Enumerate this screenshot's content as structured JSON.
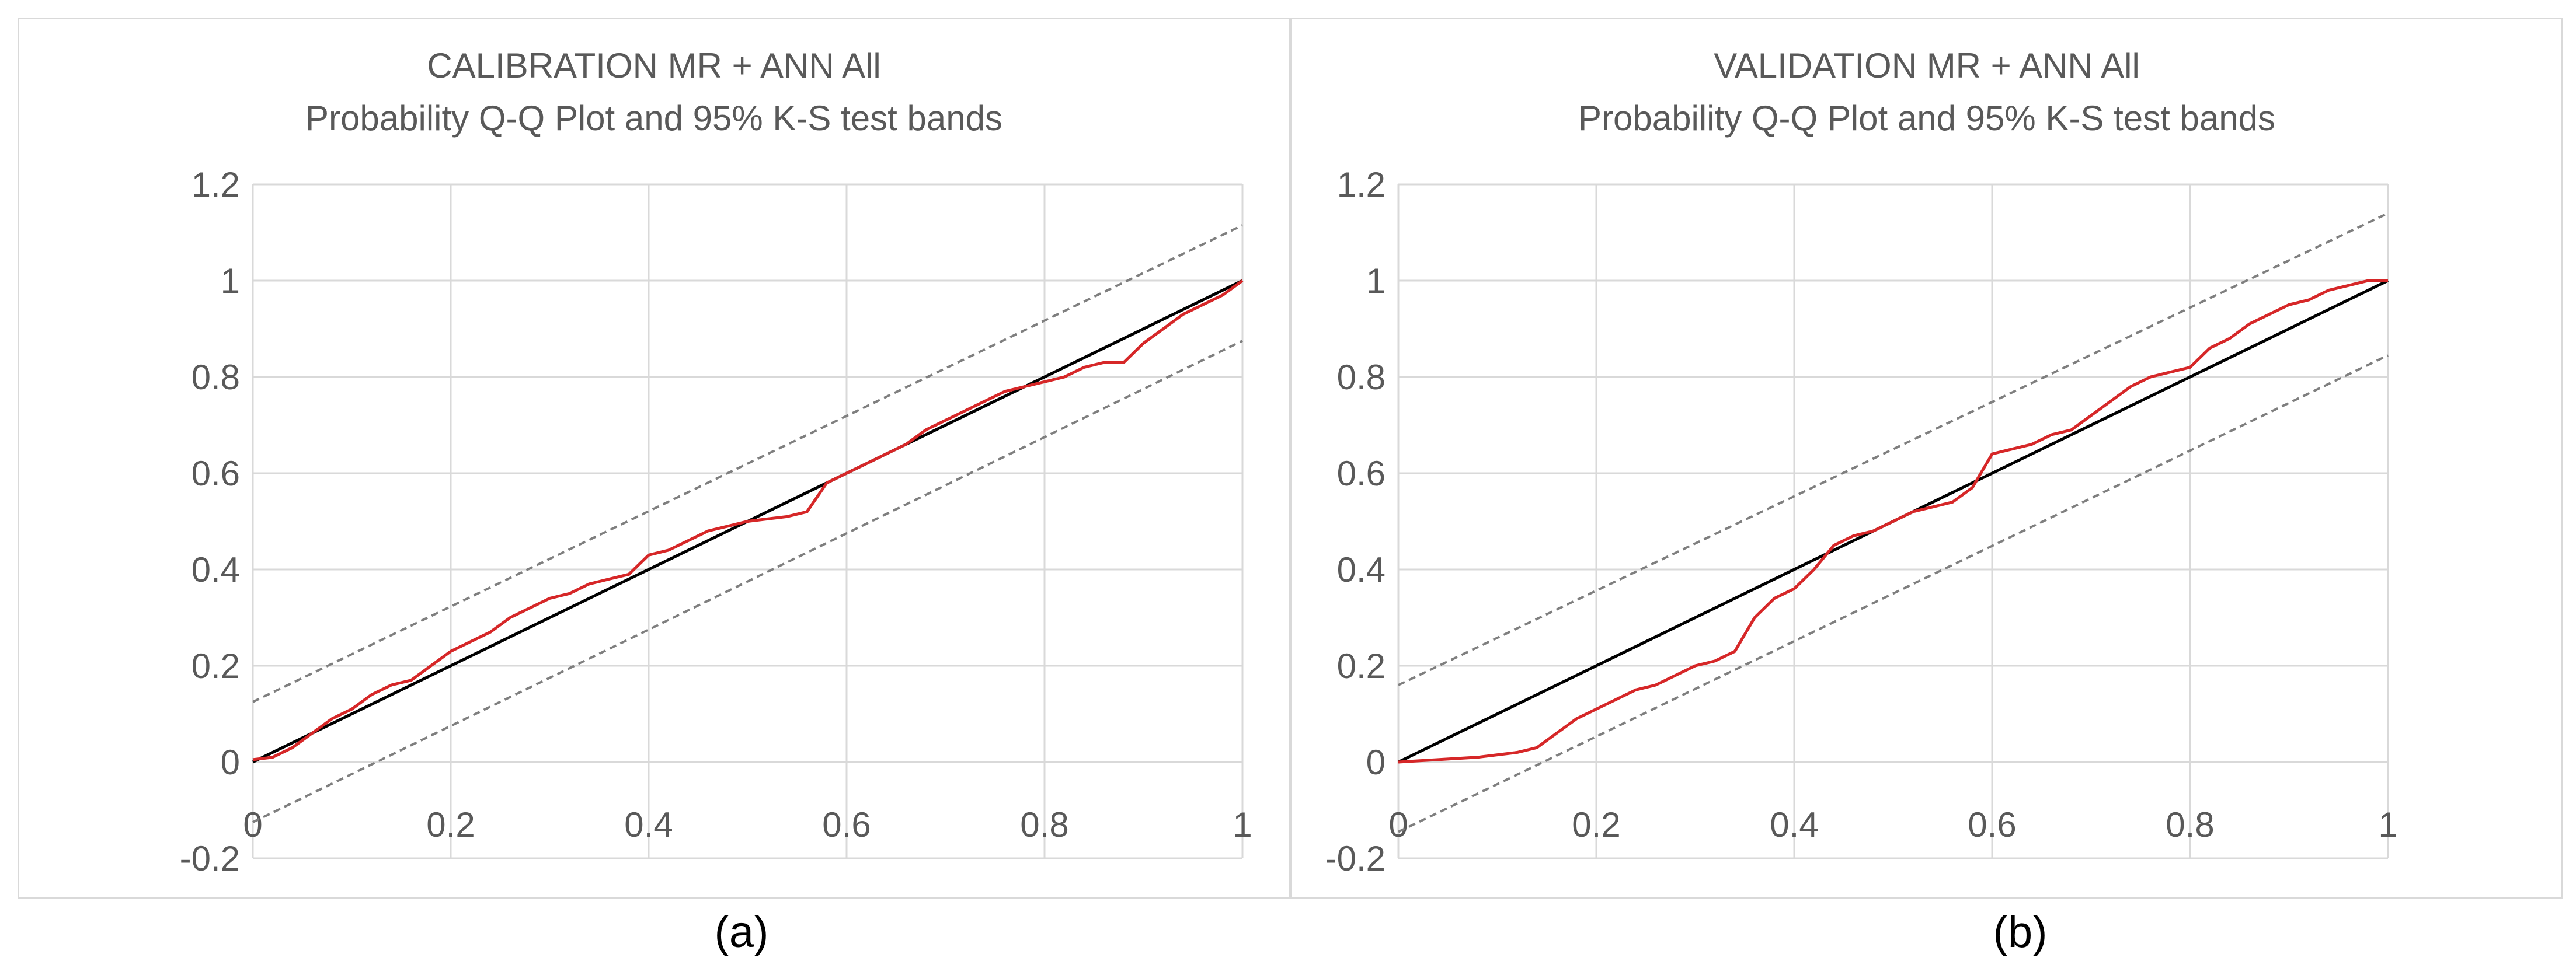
{
  "captions": [
    "(a)",
    "(b)"
  ],
  "colors": {
    "model": "#d62728",
    "identity": "#000000",
    "bands": "#7f7f7f",
    "grid": "#d9d9d9",
    "text": "#595959"
  },
  "chart_data": [
    {
      "type": "line",
      "title": "CALIBRATION  MR + ANN All",
      "subtitle": "Probability Q-Q Plot and 95% K-S test bands",
      "xlim": [
        0,
        1
      ],
      "ylim": [
        -0.2,
        1.2
      ],
      "x_ticks": [
        "0",
        "0.2",
        "0.4",
        "0.6",
        "0.8",
        "1"
      ],
      "y_ticks": [
        "1.2",
        "1",
        "0.8",
        "0.6",
        "0.4",
        "0.2",
        "0",
        "-0.2"
      ],
      "grid": true,
      "series": [
        {
          "name": "Upper K-S band",
          "style": "dashed",
          "x": [
            0,
            1
          ],
          "y": [
            0.125,
            1.115
          ]
        },
        {
          "name": "Lower K-S band",
          "style": "dashed",
          "x": [
            0,
            1
          ],
          "y": [
            -0.125,
            0.875
          ]
        },
        {
          "name": "1:1 line",
          "style": "solid",
          "x": [
            0,
            1
          ],
          "y": [
            0,
            1
          ]
        },
        {
          "name": "MR + ANN All",
          "style": "solid",
          "x": [
            0,
            0.02,
            0.04,
            0.06,
            0.08,
            0.1,
            0.12,
            0.14,
            0.16,
            0.18,
            0.2,
            0.22,
            0.24,
            0.26,
            0.28,
            0.3,
            0.32,
            0.34,
            0.36,
            0.38,
            0.4,
            0.42,
            0.44,
            0.46,
            0.48,
            0.5,
            0.52,
            0.54,
            0.56,
            0.58,
            0.6,
            0.62,
            0.64,
            0.66,
            0.68,
            0.7,
            0.72,
            0.74,
            0.76,
            0.78,
            0.8,
            0.82,
            0.84,
            0.86,
            0.88,
            0.9,
            0.92,
            0.94,
            0.96,
            0.98,
            1.0
          ],
          "y": [
            0.005,
            0.01,
            0.03,
            0.06,
            0.09,
            0.11,
            0.14,
            0.16,
            0.17,
            0.2,
            0.23,
            0.25,
            0.27,
            0.3,
            0.32,
            0.34,
            0.35,
            0.37,
            0.38,
            0.39,
            0.43,
            0.44,
            0.46,
            0.48,
            0.49,
            0.5,
            0.505,
            0.51,
            0.52,
            0.58,
            0.6,
            0.62,
            0.64,
            0.66,
            0.69,
            0.71,
            0.73,
            0.75,
            0.77,
            0.78,
            0.79,
            0.8,
            0.82,
            0.83,
            0.83,
            0.87,
            0.9,
            0.93,
            0.95,
            0.97,
            1.0
          ]
        }
      ]
    },
    {
      "type": "line",
      "title": "VALIDATION  MR + ANN All",
      "subtitle": "Probability Q-Q Plot and 95% K-S test bands",
      "xlim": [
        0,
        1
      ],
      "ylim": [
        -0.2,
        1.2
      ],
      "x_ticks": [
        "0",
        "0.2",
        "0.4",
        "0.6",
        "0.8",
        "1"
      ],
      "y_ticks": [
        "1.2",
        "1",
        "0.8",
        "0.6",
        "0.4",
        "0.2",
        "0",
        "-0.2"
      ],
      "grid": true,
      "series": [
        {
          "name": "Upper K-S band",
          "style": "dashed",
          "x": [
            0,
            1
          ],
          "y": [
            0.16,
            1.14
          ]
        },
        {
          "name": "Lower K-S band",
          "style": "dashed",
          "x": [
            0,
            1
          ],
          "y": [
            -0.145,
            0.845
          ]
        },
        {
          "name": "1:1 line",
          "style": "solid",
          "x": [
            0,
            1
          ],
          "y": [
            0,
            1
          ]
        },
        {
          "name": "MR + ANN All",
          "style": "solid",
          "x": [
            0,
            0.04,
            0.08,
            0.12,
            0.14,
            0.16,
            0.18,
            0.2,
            0.22,
            0.24,
            0.26,
            0.28,
            0.3,
            0.32,
            0.34,
            0.36,
            0.38,
            0.4,
            0.42,
            0.44,
            0.46,
            0.48,
            0.5,
            0.52,
            0.54,
            0.56,
            0.58,
            0.6,
            0.62,
            0.64,
            0.66,
            0.68,
            0.7,
            0.72,
            0.74,
            0.76,
            0.78,
            0.8,
            0.82,
            0.84,
            0.86,
            0.88,
            0.9,
            0.92,
            0.94,
            0.96,
            0.98,
            1.0
          ],
          "y": [
            0.0,
            0.005,
            0.01,
            0.02,
            0.03,
            0.06,
            0.09,
            0.11,
            0.13,
            0.15,
            0.16,
            0.18,
            0.2,
            0.21,
            0.23,
            0.3,
            0.34,
            0.36,
            0.4,
            0.45,
            0.47,
            0.48,
            0.5,
            0.52,
            0.53,
            0.54,
            0.57,
            0.64,
            0.65,
            0.66,
            0.68,
            0.69,
            0.72,
            0.75,
            0.78,
            0.8,
            0.81,
            0.82,
            0.86,
            0.88,
            0.91,
            0.93,
            0.95,
            0.96,
            0.98,
            0.99,
            1.0,
            1.0
          ]
        }
      ]
    }
  ]
}
